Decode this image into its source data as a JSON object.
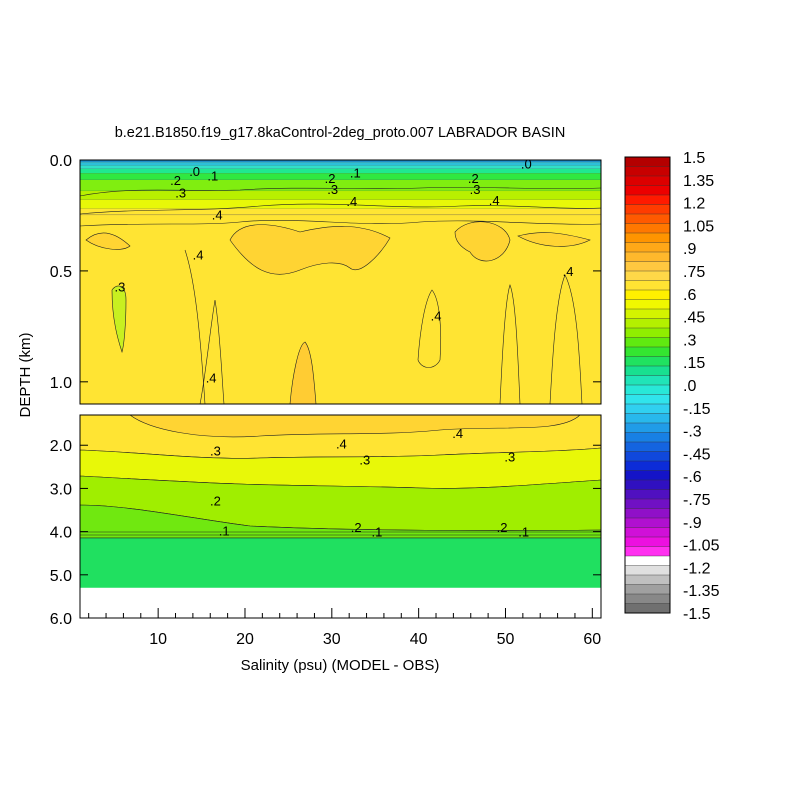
{
  "chart_data": {
    "type": "contour",
    "title": "b.e21.B1850.f19_g17.8kaControl-2deg_proto.007 LABRADOR BASIN",
    "xlabel": "Salinity (psu) (MODEL - OBS)",
    "ylabel": "DEPTH (km)",
    "xlim": [
      1,
      61
    ],
    "x_ticks": [
      "10",
      "20",
      "30",
      "40",
      "50",
      "60"
    ],
    "x_tick_values": [
      10,
      20,
      30,
      40,
      50,
      60
    ],
    "upper_panel": {
      "ylim": [
        0.0,
        1.1
      ],
      "y_ticks": [
        "0.0",
        "0.5",
        "1.0"
      ],
      "y_tick_values": [
        0.0,
        0.5,
        1.0
      ],
      "bands": [
        {
          "depth": 0.0,
          "color": "#1e90c8"
        },
        {
          "depth": 0.01,
          "color": "#2cc0d8"
        },
        {
          "depth": 0.025,
          "color": "#30e0c8"
        },
        {
          "depth": 0.04,
          "color": "#20e890"
        },
        {
          "depth": 0.06,
          "color": "#30e840"
        },
        {
          "depth": 0.09,
          "color": "#80ee10"
        },
        {
          "depth": 0.14,
          "color": "#b8f000"
        },
        {
          "depth": 0.18,
          "color": "#e8f808"
        },
        {
          "depth": 0.22,
          "color": "#ffe533"
        }
      ],
      "contour_labels": [
        {
          "text": ".0",
          "x": 14.2,
          "depth": 0.055
        },
        {
          "text": ".1",
          "x": 16.3,
          "depth": 0.075
        },
        {
          "text": ".1",
          "x": 32.7,
          "depth": 0.06
        },
        {
          "text": ".0",
          "x": 52.4,
          "depth": 0.02
        },
        {
          "text": ".2",
          "x": 12.0,
          "depth": 0.095
        },
        {
          "text": ".3",
          "x": 12.6,
          "depth": 0.15
        },
        {
          "text": ".2",
          "x": 29.8,
          "depth": 0.085
        },
        {
          "text": ".3",
          "x": 30.1,
          "depth": 0.135
        },
        {
          "text": ".2",
          "x": 46.3,
          "depth": 0.085
        },
        {
          "text": ".3",
          "x": 46.5,
          "depth": 0.135
        },
        {
          "text": ".4",
          "x": 16.8,
          "depth": 0.25
        },
        {
          "text": ".4",
          "x": 32.3,
          "depth": 0.19
        },
        {
          "text": ".4",
          "x": 48.7,
          "depth": 0.185
        },
        {
          "text": ".4",
          "x": 14.6,
          "depth": 0.43
        },
        {
          "text": ".4",
          "x": 57.2,
          "depth": 0.505
        },
        {
          "text": ".3",
          "x": 5.6,
          "depth": 0.575
        },
        {
          "text": ".4",
          "x": 42.0,
          "depth": 0.705
        },
        {
          "text": ".4",
          "x": 16.1,
          "depth": 0.985
        }
      ]
    },
    "lower_panel": {
      "ylim": [
        1.3,
        6.0
      ],
      "y_ticks": [
        "2.0",
        "3.0",
        "4.0",
        "5.0",
        "6.0"
      ],
      "y_tick_values": [
        2.0,
        3.0,
        4.0,
        5.0,
        6.0
      ],
      "bottom_depth": 5.3,
      "contour_labels": [
        {
          "text": ".4",
          "x": 31.1,
          "depth": 1.98
        },
        {
          "text": ".4",
          "x": 44.5,
          "depth": 1.74
        },
        {
          "text": ".3",
          "x": 16.6,
          "depth": 2.15
        },
        {
          "text": ".3",
          "x": 33.8,
          "depth": 2.35
        },
        {
          "text": ".3",
          "x": 50.5,
          "depth": 2.28
        },
        {
          "text": ".2",
          "x": 16.6,
          "depth": 3.3
        },
        {
          "text": ".2",
          "x": 32.8,
          "depth": 3.92
        },
        {
          "text": ".1",
          "x": 17.6,
          "depth": 4.0
        },
        {
          "text": ".1",
          "x": 35.2,
          "depth": 4.02
        },
        {
          "text": ".2",
          "x": 49.6,
          "depth": 3.92
        },
        {
          "text": ".1",
          "x": 52.1,
          "depth": 4.02
        }
      ]
    },
    "colorbar": {
      "labels": [
        "1.5",
        "1.35",
        "1.2",
        "1.05",
        ".9",
        ".75",
        ".6",
        ".45",
        ".3",
        ".15",
        ".0",
        "-.15",
        "-.3",
        "-.45",
        "-.6",
        "-.75",
        "-.9",
        "-1.05",
        "-1.2",
        "-1.35",
        "-1.5"
      ],
      "colors": [
        "#b40000",
        "#c80000",
        "#dc0000",
        "#ec0000",
        "#ff1a00",
        "#ff3c00",
        "#ff5a00",
        "#ff7800",
        "#ff9400",
        "#ffa818",
        "#ffb82c",
        "#ffc840",
        "#ffd848",
        "#ffe433",
        "#fff000",
        "#f0f800",
        "#d4f400",
        "#b4f000",
        "#90ee00",
        "#60ea10",
        "#34e630",
        "#20e260",
        "#18e090",
        "#20e4b8",
        "#28e8d8",
        "#30e4ec",
        "#30d0f0",
        "#28b8ec",
        "#209ce8",
        "#1880e4",
        "#1464e0",
        "#1048dc",
        "#0c2cd8",
        "#1414c8",
        "#3010c0",
        "#5010c0",
        "#7010c4",
        "#9010c8",
        "#b010d0",
        "#d010d8",
        "#ec10e0",
        "#ff30f0",
        "#ffffff",
        "#e0e0e0",
        "#c0c0c0",
        "#a0a0a0",
        "#888888",
        "#707070"
      ]
    }
  }
}
